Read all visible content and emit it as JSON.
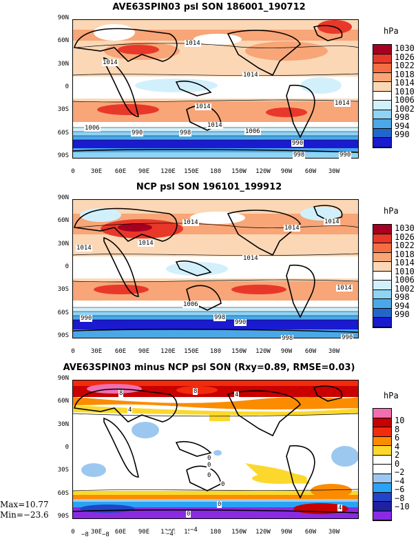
{
  "chart_data": [
    {
      "type": "heatmap",
      "title": "AVE63SPIN03 psl SON 186001_190712",
      "units": "hPa",
      "levels": [
        "1030",
        "1026",
        "1022",
        "1018",
        "1014",
        "1010",
        "1006",
        "1002",
        "998",
        "994",
        "990"
      ],
      "colors": [
        "#a50021",
        "#e8382a",
        "#f46d43",
        "#f8a577",
        "#fbd7b5",
        "#ffffff",
        "#d2f0fb",
        "#8fd3f5",
        "#4aa8e8",
        "#2266cc",
        "#1a1ad0"
      ],
      "lat_ticks": [
        "90N",
        "60N",
        "30N",
        "0",
        "30S",
        "60S",
        "90S"
      ],
      "lon_ticks": [
        "0",
        "30E",
        "60E",
        "90E",
        "120E",
        "150E",
        "180",
        "150W",
        "120W",
        "90W",
        "60W",
        "30W"
      ],
      "contour_labels": [
        "1014",
        "1014",
        "1014",
        "1014",
        "1014",
        "1006",
        "990",
        "998",
        "1014",
        "1006",
        "990",
        "998",
        "990"
      ]
    },
    {
      "type": "heatmap",
      "title": "NCP psl SON 196101_199912",
      "units": "hPa",
      "levels": [
        "1030",
        "1026",
        "1022",
        "1018",
        "1014",
        "1010",
        "1006",
        "1002",
        "998",
        "994",
        "990"
      ],
      "colors": [
        "#a50021",
        "#e8382a",
        "#f46d43",
        "#f8a577",
        "#fbd7b5",
        "#ffffff",
        "#d2f0fb",
        "#8fd3f5",
        "#4aa8e8",
        "#2266cc",
        "#1a1ad0"
      ],
      "lat_ticks": [
        "90N",
        "60N",
        "30N",
        "0",
        "30S",
        "60S",
        "90S"
      ],
      "lon_ticks": [
        "0",
        "30E",
        "60E",
        "90E",
        "120E",
        "150E",
        "180",
        "150W",
        "120W",
        "90W",
        "60W",
        "30W"
      ],
      "contour_labels": [
        "1014",
        "1014",
        "1014",
        "1014",
        "1014",
        "1014",
        "1014",
        "1006",
        "998",
        "990",
        "990",
        "998",
        "990"
      ]
    },
    {
      "type": "heatmap",
      "title": "AVE63SPIN03 minus NCP psl SON (Rxy=0.89, RMSE=0.03)",
      "units": "hPa",
      "levels": [
        "10",
        "8",
        "6",
        "4",
        "2",
        "0",
        "−2",
        "−4",
        "−6",
        "−8",
        "−10"
      ],
      "colors": [
        "#f06fb0",
        "#c80000",
        "#f22a0e",
        "#fb8c00",
        "#fcd82c",
        "#ffffff",
        "#ffffff",
        "#9cc8f0",
        "#2aa3f5",
        "#2244c8",
        "#2020a0",
        "#8a2be2"
      ],
      "lat_ticks": [
        "90N",
        "60N",
        "30N",
        "0",
        "30S",
        "60S",
        "90S"
      ],
      "lon_ticks": [
        "0",
        "30E",
        "60E",
        "90E",
        "120E",
        "150E",
        "180",
        "150W",
        "120W",
        "90W",
        "60W",
        "30W"
      ],
      "contour_labels": [
        "8",
        "8",
        "4",
        "4",
        "0",
        "0",
        "0",
        "0",
        "0",
        "0",
        "4",
        "−8",
        "−8",
        "−4",
        "−4"
      ],
      "max": "Max=10.77",
      "min": "Min=−23.6"
    }
  ]
}
